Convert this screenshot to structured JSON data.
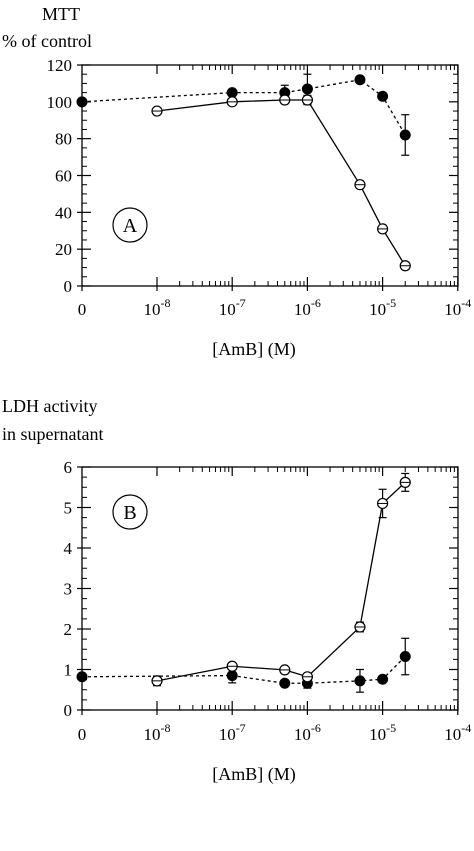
{
  "chart_data": [
    {
      "panel_label": "A",
      "type": "line",
      "ylabel": [
        "MTT",
        "% of control"
      ],
      "xlabel": "[AmB] (M)",
      "xscale": "log",
      "ylim": [
        0,
        120
      ],
      "yticks": [
        0,
        20,
        40,
        60,
        80,
        100,
        120
      ],
      "xtick_labels": [
        {
          "base": "0",
          "exp": ""
        },
        {
          "base": "10",
          "exp": "-8"
        },
        {
          "base": "10",
          "exp": "-7"
        },
        {
          "base": "10",
          "exp": "-6"
        },
        {
          "base": "10",
          "exp": "-5"
        },
        {
          "base": "10",
          "exp": "-4"
        }
      ],
      "series": [
        {
          "marker": "filled-circle",
          "line": "dashed",
          "points": [
            {
              "x": 0,
              "y": 100,
              "err": 0
            },
            {
              "x": 1e-07,
              "y": 105,
              "err": 0
            },
            {
              "x": 5e-07,
              "y": 105,
              "err": 4
            },
            {
              "x": 1e-06,
              "y": 107,
              "err": 8
            },
            {
              "x": 5e-06,
              "y": 112,
              "err": 1
            },
            {
              "x": 1e-05,
              "y": 103,
              "err": 0
            },
            {
              "x": 2e-05,
              "y": 82,
              "err": 11
            }
          ]
        },
        {
          "marker": "open-circle",
          "line": "solid",
          "points": [
            {
              "x": 1e-08,
              "y": 95,
              "err": 1.5
            },
            {
              "x": 1e-07,
              "y": 100,
              "err": 1.5
            },
            {
              "x": 5e-07,
              "y": 101,
              "err": 2
            },
            {
              "x": 1e-06,
              "y": 101,
              "err": 2.5
            },
            {
              "x": 5e-06,
              "y": 55,
              "err": 2
            },
            {
              "x": 1e-05,
              "y": 31,
              "err": 2
            },
            {
              "x": 2e-05,
              "y": 11,
              "err": 1
            }
          ]
        }
      ]
    },
    {
      "panel_label": "B",
      "type": "line",
      "ylabel": [
        "LDH activity",
        "in supernatant"
      ],
      "xlabel": "[AmB] (M)",
      "xscale": "log",
      "ylim": [
        0,
        6
      ],
      "yticks": [
        0,
        1,
        2,
        3,
        4,
        5,
        6
      ],
      "xtick_labels": [
        {
          "base": "0",
          "exp": ""
        },
        {
          "base": "10",
          "exp": "-8"
        },
        {
          "base": "10",
          "exp": "-7"
        },
        {
          "base": "10",
          "exp": "-6"
        },
        {
          "base": "10",
          "exp": "-5"
        },
        {
          "base": "10",
          "exp": "-4"
        }
      ],
      "series": [
        {
          "marker": "filled-circle",
          "line": "dashed",
          "points": [
            {
              "x": 0,
              "y": 0.82,
              "err": 0
            },
            {
              "x": 1e-07,
              "y": 0.85,
              "err": 0.18
            },
            {
              "x": 5e-07,
              "y": 0.66,
              "err": 0
            },
            {
              "x": 1e-06,
              "y": 0.66,
              "err": 0.12
            },
            {
              "x": 5e-06,
              "y": 0.72,
              "err": 0.28
            },
            {
              "x": 1e-05,
              "y": 0.76,
              "err": 0
            },
            {
              "x": 2e-05,
              "y": 1.32,
              "err": 0.45
            }
          ]
        },
        {
          "marker": "open-circle",
          "line": "solid",
          "points": [
            {
              "x": 1e-08,
              "y": 0.72,
              "err": 0.12
            },
            {
              "x": 1e-07,
              "y": 1.08,
              "err": 0.08
            },
            {
              "x": 5e-07,
              "y": 0.99,
              "err": 0.05
            },
            {
              "x": 1e-06,
              "y": 0.82,
              "err": 0.08
            },
            {
              "x": 5e-06,
              "y": 2.05,
              "err": 0.12
            },
            {
              "x": 1e-05,
              "y": 5.1,
              "err": 0.35
            },
            {
              "x": 2e-05,
              "y": 5.62,
              "err": 0.22
            }
          ]
        }
      ]
    }
  ]
}
